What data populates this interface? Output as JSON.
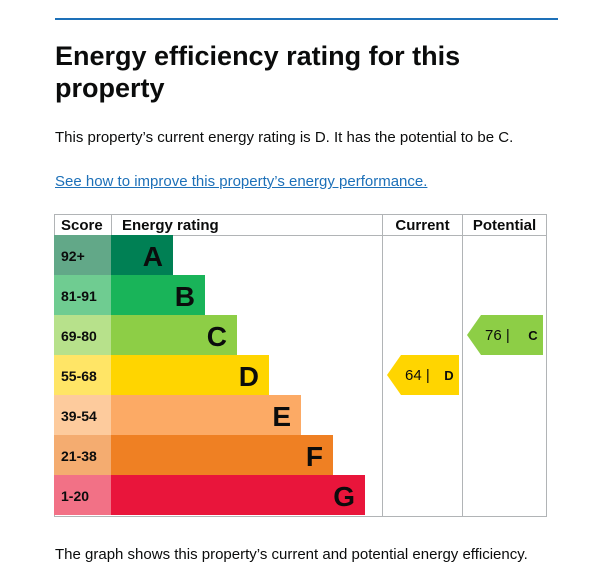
{
  "heading": "Energy efficiency rating for this property",
  "summary": "This property’s current energy rating is D. It has the potential to be C.",
  "improve_link": "See how to improve this property’s energy performance.",
  "chart_data": {
    "type": "table",
    "columns": [
      "Score",
      "Energy rating",
      "Current",
      "Potential"
    ],
    "bands": [
      {
        "score": "92+",
        "letter": "A",
        "band_color": "#008054",
        "score_color": "#62a888"
      },
      {
        "score": "81-91",
        "letter": "B",
        "band_color": "#19b459",
        "score_color": "#6fcc91"
      },
      {
        "score": "69-80",
        "letter": "C",
        "band_color": "#8dce46",
        "score_color": "#b7e18b"
      },
      {
        "score": "55-68",
        "letter": "D",
        "band_color": "#ffd500",
        "score_color": "#ffe566"
      },
      {
        "score": "39-54",
        "letter": "E",
        "band_color": "#fcaa65",
        "score_color": "#fdcb9d"
      },
      {
        "score": "21-38",
        "letter": "F",
        "band_color": "#ef8023",
        "score_color": "#f4ac70"
      },
      {
        "score": "1-20",
        "letter": "G",
        "band_color": "#e9153b",
        "score_color": "#f27186"
      }
    ],
    "current": {
      "score": 64,
      "rating": "D",
      "label": "64 |",
      "color": "#ffd500"
    },
    "potential": {
      "score": 76,
      "rating": "C",
      "label": "76 |",
      "color": "#8dce46"
    }
  },
  "footer_caption": "The graph shows this property’s current and potential energy efficiency."
}
